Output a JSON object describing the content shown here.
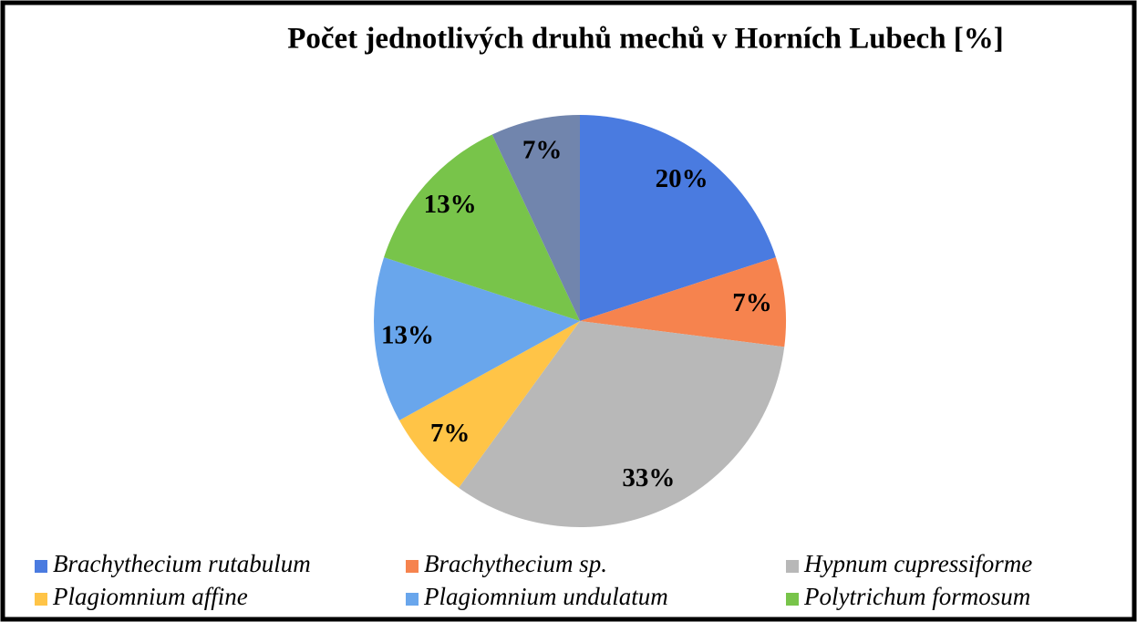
{
  "chart_data": {
    "type": "pie",
    "title": "Počet jednotlivých druhů mechů v Horních Lubech [%]",
    "categories": [
      "Brachythecium rutabulum",
      "Brachythecium sp.",
      "Hypnum cupressiforme",
      "Plagiomnium affine",
      "Plagiomnium undulatum",
      "Polytrichum formosum",
      null
    ],
    "values": [
      20,
      7,
      33,
      7,
      13,
      13,
      7
    ],
    "value_labels": [
      "20%",
      "7%",
      "33%",
      "7%",
      "13%",
      "13%",
      "7%"
    ],
    "colors": [
      "#4a7be0",
      "#f6834e",
      "#b8b8b8",
      "#ffc447",
      "#69a6ec",
      "#78c44a",
      "#7185ad"
    ],
    "legend": "bottom"
  }
}
